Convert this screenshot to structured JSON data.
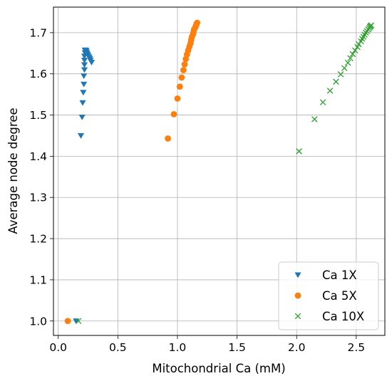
{
  "chart_data": {
    "type": "scatter",
    "title": "",
    "xlabel": "Mitochondrial Ca (mM)",
    "ylabel": "Average node degree",
    "xlim": [
      -0.04,
      2.74
    ],
    "ylim": [
      0.965,
      1.762
    ],
    "xticks": [
      0.0,
      0.5,
      1.0,
      1.5,
      2.0,
      2.5
    ],
    "xtick_labels": [
      "0.0",
      "0.5",
      "1.0",
      "1.5",
      "2.0",
      "2.5"
    ],
    "yticks": [
      1.0,
      1.1,
      1.2,
      1.3,
      1.4,
      1.5,
      1.6,
      1.7
    ],
    "ytick_labels": [
      "1.0",
      "1.1",
      "1.2",
      "1.3",
      "1.4",
      "1.5",
      "1.6",
      "1.7"
    ],
    "grid": true,
    "legend_position": "lower-right",
    "series": [
      {
        "name": "Ca 1X",
        "marker": "triangle-down",
        "color": "#1f77b4",
        "points": [
          [
            0.15,
            1.0
          ],
          [
            0.19,
            1.45
          ],
          [
            0.2,
            1.495
          ],
          [
            0.205,
            1.53
          ],
          [
            0.21,
            1.555
          ],
          [
            0.215,
            1.575
          ],
          [
            0.215,
            1.595
          ],
          [
            0.22,
            1.61
          ],
          [
            0.22,
            1.622
          ],
          [
            0.22,
            1.633
          ],
          [
            0.22,
            1.643
          ],
          [
            0.225,
            1.651
          ],
          [
            0.225,
            1.657
          ],
          [
            0.23,
            1.658
          ],
          [
            0.235,
            1.656
          ],
          [
            0.24,
            1.652
          ],
          [
            0.245,
            1.648
          ],
          [
            0.25,
            1.645
          ],
          [
            0.26,
            1.641
          ],
          [
            0.265,
            1.637
          ],
          [
            0.27,
            1.633
          ],
          [
            0.28,
            1.628
          ]
        ]
      },
      {
        "name": "Ca 5X",
        "marker": "circle",
        "color": "#ff7f0e",
        "points": [
          [
            0.08,
            1.0
          ],
          [
            0.92,
            1.443
          ],
          [
            0.97,
            1.502
          ],
          [
            1.0,
            1.54
          ],
          [
            1.02,
            1.569
          ],
          [
            1.035,
            1.591
          ],
          [
            1.05,
            1.609
          ],
          [
            1.06,
            1.623
          ],
          [
            1.07,
            1.636
          ],
          [
            1.08,
            1.647
          ],
          [
            1.09,
            1.657
          ],
          [
            1.1,
            1.666
          ],
          [
            1.11,
            1.674
          ],
          [
            1.115,
            1.682
          ],
          [
            1.12,
            1.689
          ],
          [
            1.13,
            1.696
          ],
          [
            1.135,
            1.702
          ],
          [
            1.14,
            1.708
          ],
          [
            1.15,
            1.713
          ],
          [
            1.155,
            1.717
          ],
          [
            1.16,
            1.721
          ],
          [
            1.165,
            1.724
          ]
        ]
      },
      {
        "name": "Ca 10X",
        "marker": "x",
        "color": "#2ca02c",
        "points": [
          [
            0.17,
            1.0
          ],
          [
            2.02,
            1.412
          ],
          [
            2.15,
            1.49
          ],
          [
            2.22,
            1.531
          ],
          [
            2.28,
            1.559
          ],
          [
            2.33,
            1.581
          ],
          [
            2.37,
            1.599
          ],
          [
            2.4,
            1.614
          ],
          [
            2.43,
            1.627
          ],
          [
            2.45,
            1.638
          ],
          [
            2.47,
            1.648
          ],
          [
            2.49,
            1.657
          ],
          [
            2.51,
            1.665
          ],
          [
            2.52,
            1.672
          ],
          [
            2.54,
            1.679
          ],
          [
            2.55,
            1.685
          ],
          [
            2.56,
            1.69
          ],
          [
            2.57,
            1.695
          ],
          [
            2.58,
            1.7
          ],
          [
            2.59,
            1.704
          ],
          [
            2.6,
            1.708
          ],
          [
            2.61,
            1.711
          ],
          [
            2.615,
            1.714
          ],
          [
            2.62,
            1.716
          ],
          [
            2.625,
            1.718
          ]
        ]
      }
    ]
  }
}
